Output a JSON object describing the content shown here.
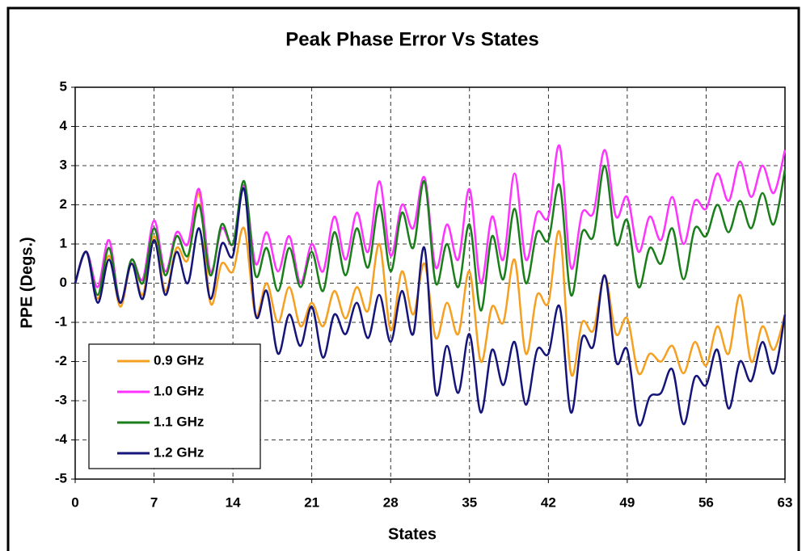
{
  "chart_data": {
    "type": "line",
    "title": "Peak Phase Error Vs States",
    "x_label": "States",
    "y_label": "PPE (Degs.)",
    "x": [
      0,
      1,
      2,
      3,
      4,
      5,
      6,
      7,
      8,
      9,
      10,
      11,
      12,
      13,
      14,
      15,
      16,
      17,
      18,
      19,
      20,
      21,
      22,
      23,
      24,
      25,
      26,
      27,
      28,
      29,
      30,
      31,
      32,
      33,
      34,
      35,
      36,
      37,
      38,
      39,
      40,
      41,
      42,
      43,
      44,
      45,
      46,
      47,
      48,
      49,
      50,
      51,
      52,
      53,
      54,
      55,
      56,
      57,
      58,
      59,
      60,
      61,
      62,
      63
    ],
    "series": [
      {
        "name": "0.9 GHz",
        "color": "#f5a020",
        "values": [
          0,
          0.8,
          -0.4,
          0.7,
          -0.6,
          0.5,
          -0.3,
          1.2,
          -0.2,
          0.9,
          0.6,
          2.3,
          -0.5,
          0.5,
          0.3,
          1.4,
          -0.8,
          0.0,
          -1.0,
          -0.1,
          -1.1,
          -0.5,
          -1.1,
          -0.2,
          -0.9,
          -0.1,
          -0.7,
          1.0,
          -1.2,
          0.3,
          -0.8,
          0.5,
          -1.4,
          -0.5,
          -1.3,
          0.3,
          -2.0,
          -0.6,
          -1.0,
          0.6,
          -1.8,
          -0.3,
          -0.5,
          1.3,
          -2.3,
          -1.0,
          -1.2,
          0.2,
          -1.3,
          -0.9,
          -2.3,
          -1.8,
          -2.0,
          -1.6,
          -2.3,
          -1.5,
          -2.1,
          -1.1,
          -1.8,
          -0.3,
          -2.0,
          -1.1,
          -1.7,
          -0.8
        ]
      },
      {
        "name": "1.0 GHz",
        "color": "#ff33ff",
        "values": [
          0,
          0.8,
          -0.1,
          1.1,
          -0.5,
          0.6,
          0.1,
          1.6,
          0.3,
          1.3,
          1.0,
          2.4,
          0.3,
          1.4,
          1.0,
          2.5,
          0.5,
          1.3,
          0.3,
          1.2,
          0.0,
          1.0,
          0.3,
          1.7,
          0.6,
          1.8,
          0.8,
          2.6,
          0.7,
          2.0,
          1.4,
          2.7,
          0.4,
          1.5,
          0.6,
          2.4,
          0.0,
          1.7,
          0.6,
          2.8,
          0.6,
          1.8,
          1.7,
          3.5,
          0.4,
          1.8,
          1.8,
          3.4,
          1.7,
          2.2,
          0.8,
          1.7,
          1.1,
          2.2,
          1.0,
          2.1,
          1.9,
          2.8,
          2.1,
          3.1,
          2.2,
          3.0,
          2.3,
          3.4
        ]
      },
      {
        "name": "1.1 GHz",
        "color": "#1a7f1a",
        "values": [
          0,
          0.8,
          -0.3,
          0.9,
          -0.5,
          0.6,
          0.0,
          1.4,
          0.2,
          1.2,
          0.7,
          2.0,
          0.2,
          1.5,
          1.0,
          2.6,
          0.2,
          0.9,
          -0.2,
          0.9,
          -0.1,
          0.8,
          -0.2,
          1.3,
          0.2,
          1.4,
          0.4,
          2.0,
          0.3,
          1.8,
          0.9,
          2.6,
          0.0,
          1.0,
          -0.1,
          1.5,
          -0.7,
          1.2,
          0.1,
          1.9,
          0.0,
          1.3,
          1.1,
          2.5,
          -0.3,
          1.3,
          1.2,
          3.0,
          1.0,
          1.6,
          -0.1,
          0.9,
          0.5,
          1.4,
          0.1,
          1.4,
          1.2,
          2.0,
          1.3,
          2.1,
          1.4,
          2.3,
          1.5,
          2.9
        ]
      },
      {
        "name": "1.2 GHz",
        "color": "#14147a",
        "values": [
          0,
          0.8,
          -0.5,
          0.6,
          -0.5,
          0.5,
          -0.4,
          1.1,
          -0.3,
          0.8,
          0.0,
          1.4,
          -0.4,
          1.0,
          0.7,
          2.4,
          -0.8,
          -0.2,
          -1.8,
          -0.8,
          -1.6,
          -0.6,
          -1.9,
          -0.8,
          -1.3,
          -0.5,
          -1.4,
          -0.3,
          -1.5,
          -0.2,
          -1.3,
          0.9,
          -2.8,
          -1.6,
          -2.8,
          -1.3,
          -3.3,
          -1.7,
          -2.6,
          -1.5,
          -3.1,
          -1.7,
          -1.8,
          -0.6,
          -3.3,
          -1.4,
          -1.6,
          0.2,
          -2.0,
          -1.7,
          -3.6,
          -2.9,
          -2.8,
          -2.2,
          -3.6,
          -2.4,
          -2.6,
          -1.7,
          -3.2,
          -2.0,
          -2.5,
          -1.5,
          -2.3,
          -0.8
        ]
      }
    ],
    "xlim": [
      0,
      63
    ],
    "xticks": [
      0,
      7,
      14,
      21,
      28,
      35,
      42,
      49,
      56,
      63
    ],
    "ylim": [
      -5,
      5
    ],
    "yticks": [
      -5,
      -4,
      -3,
      -2,
      -1,
      0,
      1,
      2,
      3,
      4,
      5
    ],
    "grid": true,
    "legend": "lower left"
  }
}
